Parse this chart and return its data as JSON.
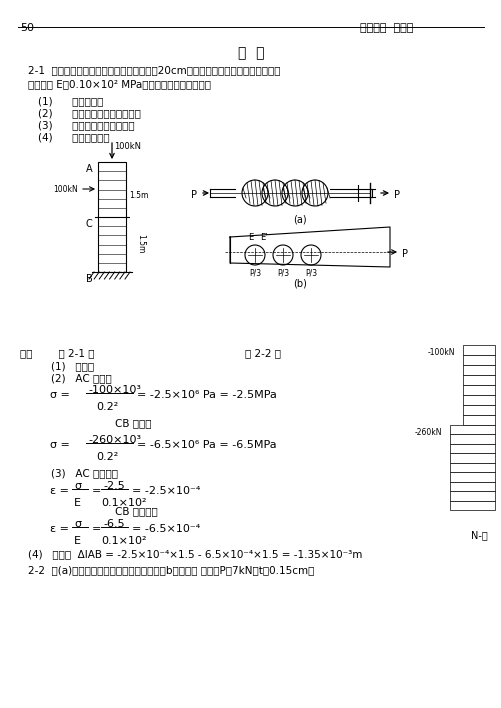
{
  "page_num": "50",
  "header_right": "第十一章  能量法",
  "title": "习  题",
  "p1_line1": "2-1  一木柱受力如图示，柱的横截面为边镵20cm的正方形，材料服从虎克定律，其",
  "p1_line2": "弹性模量 E＝0.10×10² MPa．如不计柱自重，试求：",
  "i1": "(1)      作轴力图；",
  "i2": "(2)      各段柱横截面上的应力；",
  "i3": "(3)      各段柱的纵向线应变；",
  "i4": "(4)      柱的总变形．",
  "sol_header1": "解：        题 2-1 图",
  "sol_header2": "题 2-2 图",
  "s1": "    (1)   轴力图",
  "s2": "    (2)   AC 段应力",
  "cb1": "CB 段应力",
  "s3": "    (3)   AC 段线应变",
  "cb2": "CB 段线应变",
  "nfig": "N-图",
  "s4pre": "    (4)   总变形  Δl",
  "s4mid": "AB",
  "s4post": " ＝−2.5×10⁻⁴×1.5−6.5×10⁻⁴×1.5＝−1.35×10⁻³m",
  "p22": "2-2  图(a)所示螺栓件，板的受力情况如图（b）所示． 已知：P＝7kN，t＝0.15cm，",
  "bg": "#ffffff",
  "fg": "#000000"
}
